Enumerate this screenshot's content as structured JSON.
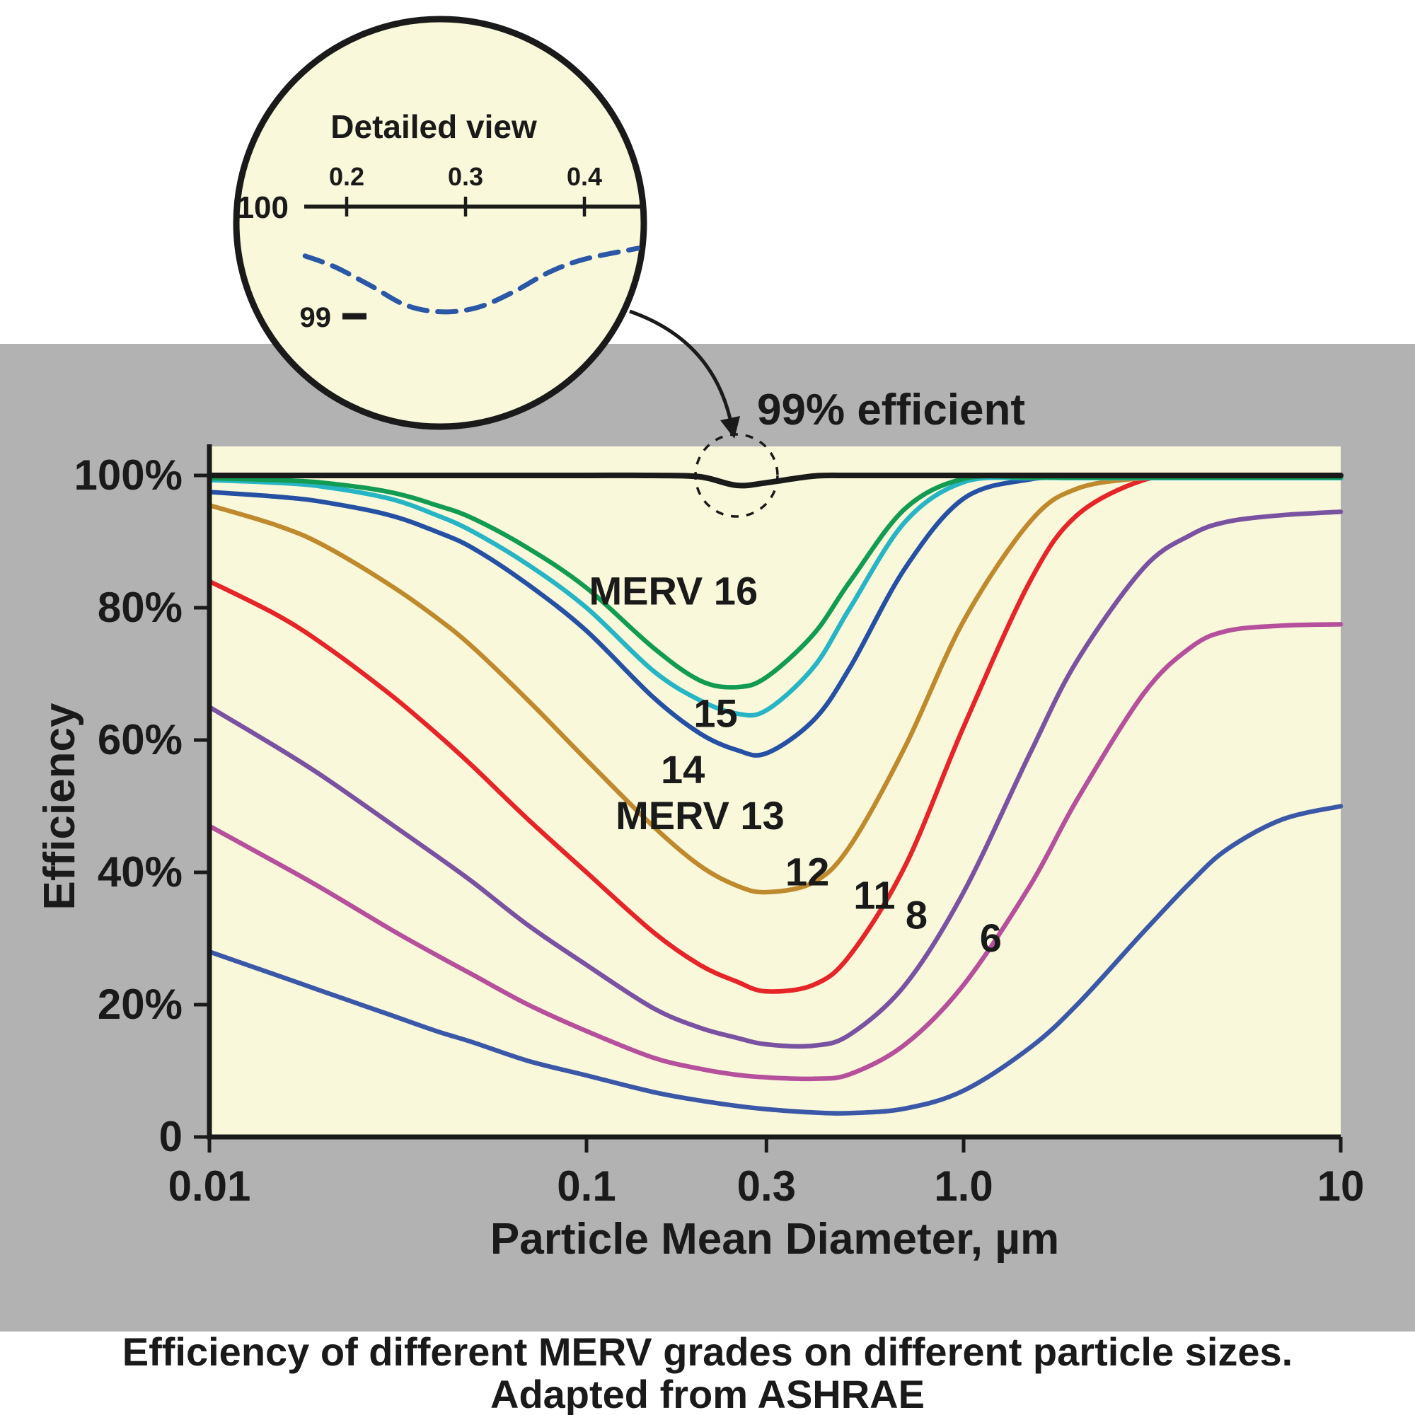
{
  "figure": {
    "background_gray": "#b2b2b2",
    "plot_background": "#f9f8da"
  },
  "inset": {
    "title": "Detailed view",
    "x_ticks": [
      "0.2",
      "0.3",
      "0.4"
    ],
    "y_top_label": "100",
    "y_bottom_label": "99",
    "curve_color": "#2b57a7",
    "curve_points": [
      [
        0.165,
        99.55
      ],
      [
        0.19,
        99.45
      ],
      [
        0.22,
        99.28
      ],
      [
        0.25,
        99.1
      ],
      [
        0.28,
        99.04
      ],
      [
        0.31,
        99.08
      ],
      [
        0.34,
        99.22
      ],
      [
        0.37,
        99.4
      ],
      [
        0.4,
        99.52
      ],
      [
        0.445,
        99.62
      ]
    ]
  },
  "annotation": {
    "label": "99% efficient"
  },
  "caption": {
    "line1": "Efficiency of different MERV grades on different particle sizes.",
    "line2": "Adapted from ASHRAE"
  },
  "chart_data": {
    "type": "line",
    "title": "",
    "xlabel": "Particle Mean Diameter, µm",
    "ylabel": "Efficiency",
    "x_scale": "log",
    "xlim": [
      0.01,
      10
    ],
    "ylim": [
      0,
      100
    ],
    "grid": false,
    "legend": "inline-labels",
    "x_ticks": [
      {
        "value": 0.01,
        "label": "0.01"
      },
      {
        "value": 0.1,
        "label": "0.1"
      },
      {
        "value": 0.3,
        "label": "0.3"
      },
      {
        "value": 1.0,
        "label": "1.0"
      },
      {
        "value": 10,
        "label": "10"
      }
    ],
    "y_ticks": [
      {
        "value": 0,
        "label": "0"
      },
      {
        "value": 20,
        "label": "20%"
      },
      {
        "value": 40,
        "label": "40%"
      },
      {
        "value": 60,
        "label": "60%"
      },
      {
        "value": 80,
        "label": "80%"
      },
      {
        "value": 100,
        "label": "100%"
      }
    ],
    "x": [
      0.01,
      0.015,
      0.02,
      0.03,
      0.04,
      0.05,
      0.07,
      0.1,
      0.15,
      0.2,
      0.25,
      0.3,
      0.4,
      0.5,
      0.7,
      1,
      1.5,
      2,
      3,
      4,
      5,
      7,
      10
    ],
    "series": [
      {
        "name": "MERV 6",
        "color": "#3b57a8",
        "values": [
          28,
          24.5,
          22,
          18.5,
          16,
          14.3,
          11.5,
          9.3,
          6.8,
          5.5,
          4.7,
          4.2,
          3.7,
          3.6,
          4.3,
          7,
          13.5,
          20,
          31,
          38.5,
          43.5,
          48,
          50
        ],
        "label": {
          "text": "6",
          "x": 1.18,
          "y": 28
        }
      },
      {
        "name": "MERV 8",
        "color": "#b5509c",
        "values": [
          47,
          41.5,
          37.5,
          31.5,
          27.5,
          24.5,
          20,
          16,
          12,
          10.3,
          9.4,
          9,
          8.8,
          9.5,
          14,
          23,
          38,
          51,
          67,
          74,
          76.5,
          77.3,
          77.5
        ],
        "label": {
          "text": "8",
          "x": 0.75,
          "y": 31.5
        }
      },
      {
        "name": "MERV 11",
        "color": "#7a52a2",
        "values": [
          65,
          59,
          54.5,
          47.5,
          42.5,
          38.5,
          32,
          26,
          19.5,
          16.5,
          15,
          14,
          13.8,
          15.5,
          23,
          37,
          58,
          72,
          86,
          91,
          93,
          94,
          94.5
        ],
        "label": {
          "text": "11",
          "x": 0.58,
          "y": 34.5
        }
      },
      {
        "name": "MERV 12",
        "color": "#e52528",
        "values": [
          84,
          79,
          74.5,
          67,
          61,
          56,
          48,
          40,
          31,
          26,
          23.5,
          22,
          23,
          27.5,
          41,
          62,
          84,
          94,
          99.3,
          99.6,
          99.6,
          99.6,
          99.6
        ],
        "label": {
          "text": "12",
          "x": 0.385,
          "y": 38
        }
      },
      {
        "name": "MERV 13",
        "color": "#bf8a2e",
        "values": [
          95.5,
          92.5,
          89.5,
          83.5,
          78.5,
          74,
          66,
          57,
          47,
          41,
          38,
          37,
          38.5,
          44,
          59,
          78,
          93,
          98,
          99.6,
          99.6,
          99.6,
          99.6,
          99.6
        ],
        "label": {
          "text": "MERV 13",
          "x": 0.2,
          "y": 46.5
        }
      },
      {
        "name": "MERV 14",
        "color": "#2550a4",
        "values": [
          97.5,
          96.8,
          96,
          94,
          91.5,
          89,
          83.5,
          76.5,
          66.5,
          61,
          58.5,
          58,
          63,
          71,
          86,
          96.5,
          99.4,
          99.6,
          99.6,
          99.6,
          99.6,
          99.6,
          99.6
        ],
        "label": {
          "text": "14",
          "x": 0.18,
          "y": 53.5
        }
      },
      {
        "name": "MERV 15",
        "color": "#27b5c6",
        "values": [
          99.3,
          98.9,
          98.3,
          96.5,
          94,
          91.5,
          86.5,
          80,
          70.5,
          66,
          64,
          64.5,
          71,
          80,
          93,
          99,
          99.6,
          99.6,
          99.6,
          99.6,
          99.6,
          99.6,
          99.6
        ],
        "label": {
          "text": "15",
          "x": 0.22,
          "y": 62
        }
      },
      {
        "name": "MERV 16",
        "color": "#129b52",
        "values": [
          99.6,
          99.3,
          98.9,
          97.5,
          95.5,
          93.5,
          89,
          83,
          74,
          69,
          68,
          69.5,
          76,
          84,
          95,
          99.5,
          99.7,
          99.7,
          99.7,
          99.7,
          99.7,
          99.7,
          99.7
        ],
        "label": {
          "text": "MERV 16",
          "x": 0.17,
          "y": 80.5
        }
      },
      {
        "name": "99% efficient",
        "color": "#1a1a1a",
        "width": 8,
        "values": [
          100,
          100,
          100,
          100,
          100,
          100,
          100,
          100,
          100,
          99.8,
          98.5,
          98.9,
          99.9,
          100,
          100,
          100,
          100,
          100,
          100,
          100,
          100,
          100,
          100
        ]
      }
    ]
  }
}
